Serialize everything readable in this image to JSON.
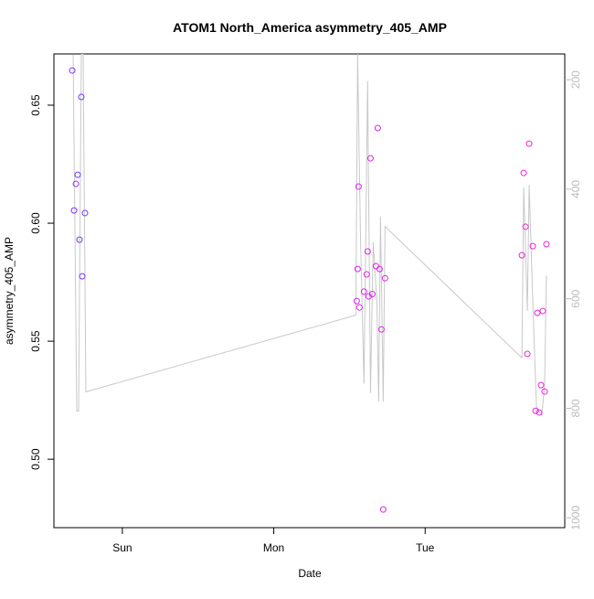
{
  "chart_data": {
    "type": "scatter",
    "title": "ATOM1 North_America asymmetry_405_AMP",
    "x_label": "Date",
    "y_label": "asymmetry_405_AMP",
    "xlim": [
      0.548,
      3.922
    ],
    "xticks": [
      {
        "value": 1,
        "label": "Sun"
      },
      {
        "value": 2,
        "label": "Mon"
      },
      {
        "value": 3,
        "label": "Tue"
      }
    ],
    "ylim": [
      0.471,
      0.6717
    ],
    "yticks": [
      {
        "value": 0.5,
        "label": "0.50"
      },
      0.55,
      {
        "value": 0.6,
        "label": "0.60"
      },
      0.65
    ],
    "y2lim": [
      1018,
      153
    ],
    "y2ticks": [
      200,
      400,
      600,
      800,
      1000
    ],
    "series": [
      {
        "type": "scatter",
        "x": [
          0.669,
          0.681,
          0.693,
          0.705,
          0.717,
          0.729,
          0.735,
          0.753,
          2.548,
          2.554,
          2.56,
          2.566,
          2.596,
          2.614,
          2.62,
          2.627,
          2.639,
          2.651,
          2.675,
          2.687,
          2.699,
          2.711,
          2.723,
          2.735,
          3.639,
          3.651,
          3.663,
          3.675,
          3.687,
          3.711,
          3.729,
          3.741,
          3.753,
          3.765,
          3.777,
          3.789,
          3.801
        ],
        "values": [
          0.6647,
          0.6054,
          0.6167,
          0.6205,
          0.593,
          0.6535,
          0.5775,
          0.6043,
          0.567,
          0.5806,
          0.6155,
          0.5643,
          0.571,
          0.5783,
          0.588,
          0.569,
          0.6275,
          0.57,
          0.5818,
          0.6403,
          0.5806,
          0.555,
          0.4787,
          0.5767,
          0.5864,
          0.6213,
          0.5985,
          0.5446,
          0.6337,
          0.5903,
          0.5205,
          0.562,
          0.5198,
          0.5314,
          0.5628,
          0.5287,
          0.5911
        ],
        "colors": [
          "#7a35ff",
          "#7a35ff",
          "#7a35ff",
          "#7a35ff",
          "#7a35ff",
          "#7a35ff",
          "#7a35ff",
          "#7a35ff",
          "#d925ea",
          "#d925ea",
          "#d925ea",
          "#d925ea",
          "#d925ea",
          "#d925ea",
          "#d925ea",
          "#d925ea",
          "#d925ea",
          "#d925ea",
          "#d925ea",
          "#d925ea",
          "#d925ea",
          "#d925ea",
          "#d925ea",
          "#d925ea",
          "#ee22dd",
          "#ee22dd",
          "#ee22dd",
          "#ee22dd",
          "#ee22dd",
          "#ee22dd",
          "#ee22dd",
          "#ee22dd",
          "#ee22dd",
          "#ee22dd",
          "#ee22dd",
          "#ee22dd",
          "#ee22dd"
        ]
      },
      {
        "type": "line",
        "axis": "y2",
        "color": "#c8c8c8",
        "x": [
          0.675,
          0.699,
          0.711,
          0.729,
          0.741,
          0.759,
          2.542,
          2.554,
          2.572,
          2.596,
          2.62,
          2.639,
          2.657,
          2.681,
          2.693,
          2.705,
          2.723,
          2.735,
          3.639,
          3.651,
          3.675,
          3.687,
          3.711,
          3.735,
          3.771,
          3.789,
          3.801
        ],
        "values": [
          155,
          805,
          805,
          153,
          153,
          770,
          630,
          153,
          475,
          755,
          202,
          772,
          497,
          605,
          788,
          450,
          788,
          468,
          708,
          397,
          622,
          392,
          605,
          797,
          813,
          755,
          558
        ]
      }
    ]
  }
}
